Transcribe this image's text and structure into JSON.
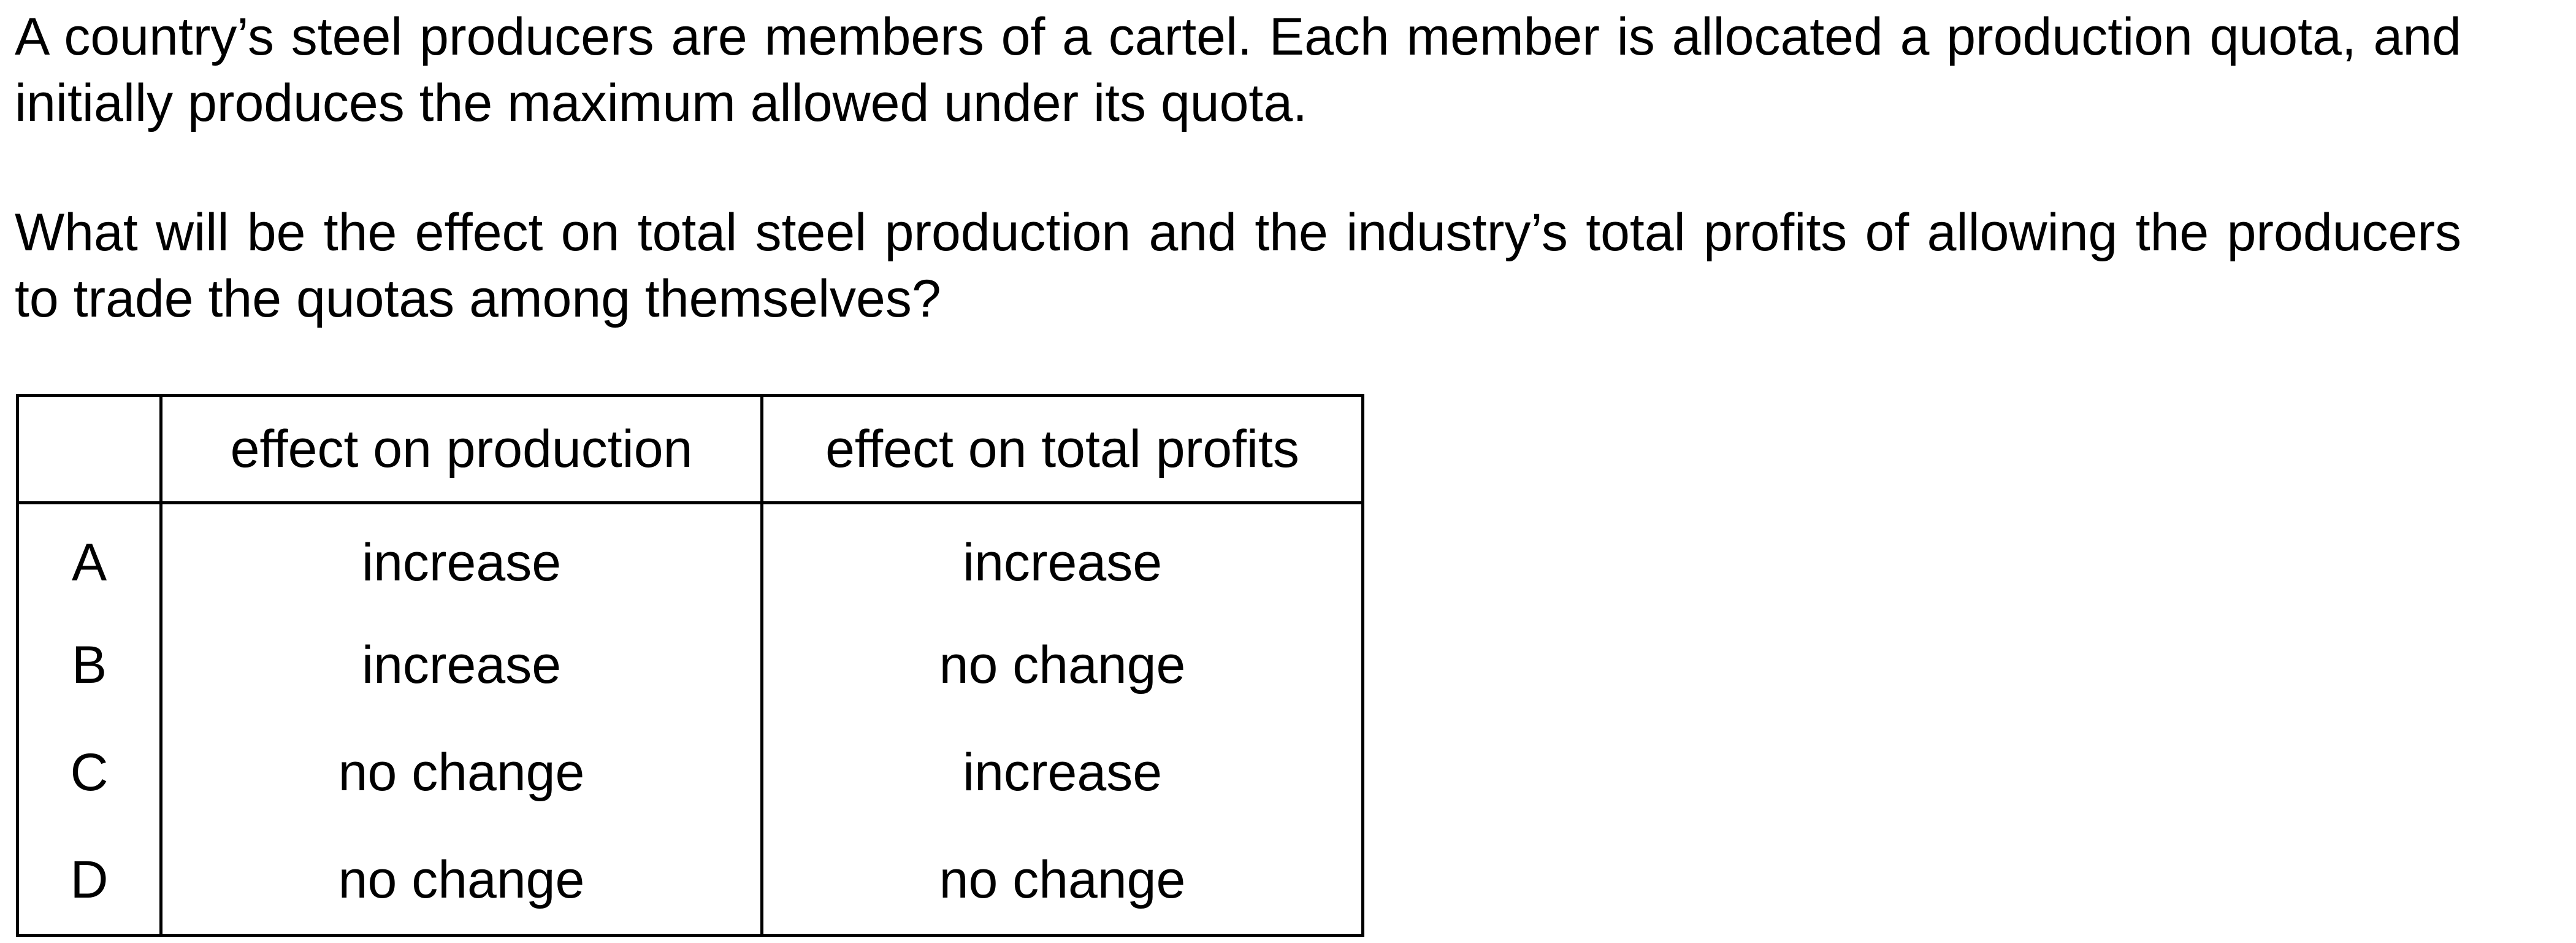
{
  "question": {
    "paragraph1": "A country’s steel producers are members of a cartel. Each member is allocated a production quota, and initially produces the maximum allowed under its quota.",
    "paragraph2": "What will be the effect on total steel production and the industry’s total profits of allowing the producers to trade the quotas among themselves?"
  },
  "table": {
    "headers": [
      "",
      "effect on production",
      "effect on total profits"
    ],
    "rows": [
      {
        "key": "A",
        "production": "increase",
        "profits": "increase"
      },
      {
        "key": "B",
        "production": "increase",
        "profits": "no change"
      },
      {
        "key": "C",
        "production": "no change",
        "profits": "increase"
      },
      {
        "key": "D",
        "production": "no change",
        "profits": "no change"
      }
    ]
  }
}
